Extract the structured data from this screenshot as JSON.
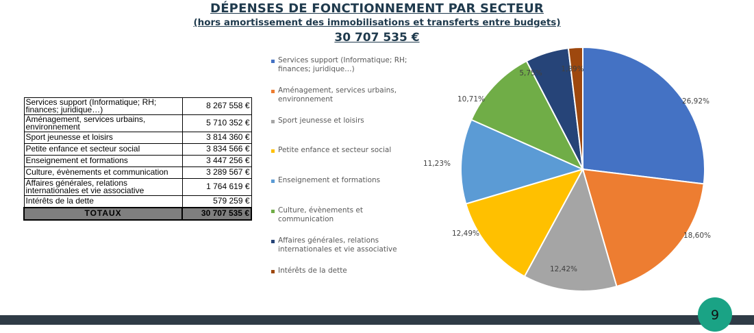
{
  "header": {
    "title": "DÉPENSES DE FONCTIONNEMENT PAR SECTEUR",
    "subtitle": "(hors amortissement des immobilisations et transferts entre budgets)",
    "total": "30 707 535 €"
  },
  "table": {
    "rows": [
      {
        "label": "Services support (Informatique; RH; finances; juridique…)",
        "value": "8 267 558 €"
      },
      {
        "label": "Aménagement, services urbains, environnement",
        "value": "5 710 352 €"
      },
      {
        "label": "Sport jeunesse et loisirs",
        "value": "3 814 360 €"
      },
      {
        "label": "Petite enfance et secteur social",
        "value": "3 834 566 €"
      },
      {
        "label": "Enseignement et formations",
        "value": "3 447 256 €"
      },
      {
        "label": "Culture, évènements et communication",
        "value": "3 289 567 €"
      },
      {
        "label": "Affaires générales, relations internationales et vie associative",
        "value": "1 764 619 €"
      },
      {
        "label": "Intérêts de la dette",
        "value": "579 259 €"
      }
    ],
    "total_label": "TOTAUX",
    "total_value": "30 707 535 €"
  },
  "chart_data": {
    "type": "pie",
    "categories": [
      "Services support (Informatique; RH; finances; juridique…)",
      "Aménagement, services urbains, environnement",
      "Sport jeunesse et loisirs",
      "Petite enfance et secteur social",
      "Enseignement et formations",
      "Culture, évènements et communication",
      "Affaires générales, relations internationales et vie associative",
      "Intérêts de la dette"
    ],
    "values": [
      26.92,
      18.6,
      12.42,
      12.49,
      11.23,
      10.71,
      5.75,
      1.89
    ],
    "labels": [
      "26,92%",
      "18,60%",
      "12,42%",
      "12,49%",
      "11,23%",
      "10,71%",
      "5,75%",
      "1,89%"
    ],
    "colors": [
      "#4472c4",
      "#ed7d31",
      "#a5a5a5",
      "#ffc000",
      "#5b9bd5",
      "#70ad47",
      "#264478",
      "#9e480e"
    ],
    "legend_position": "left"
  },
  "legend": {
    "items": [
      "Services support (Informatique; RH; finances; juridique…)",
      "Aménagement, services urbains, environnement",
      "Sport jeunesse et loisirs",
      "Petite enfance et secteur social",
      "Enseignement et formations",
      "Culture, évènements et communication",
      "Affaires générales, relations internationales et vie associative",
      "Intérêts de la dette"
    ]
  },
  "footer": {
    "page_number": "9",
    "bar_color": "#2f3b46",
    "badge_color": "#1aa385"
  }
}
